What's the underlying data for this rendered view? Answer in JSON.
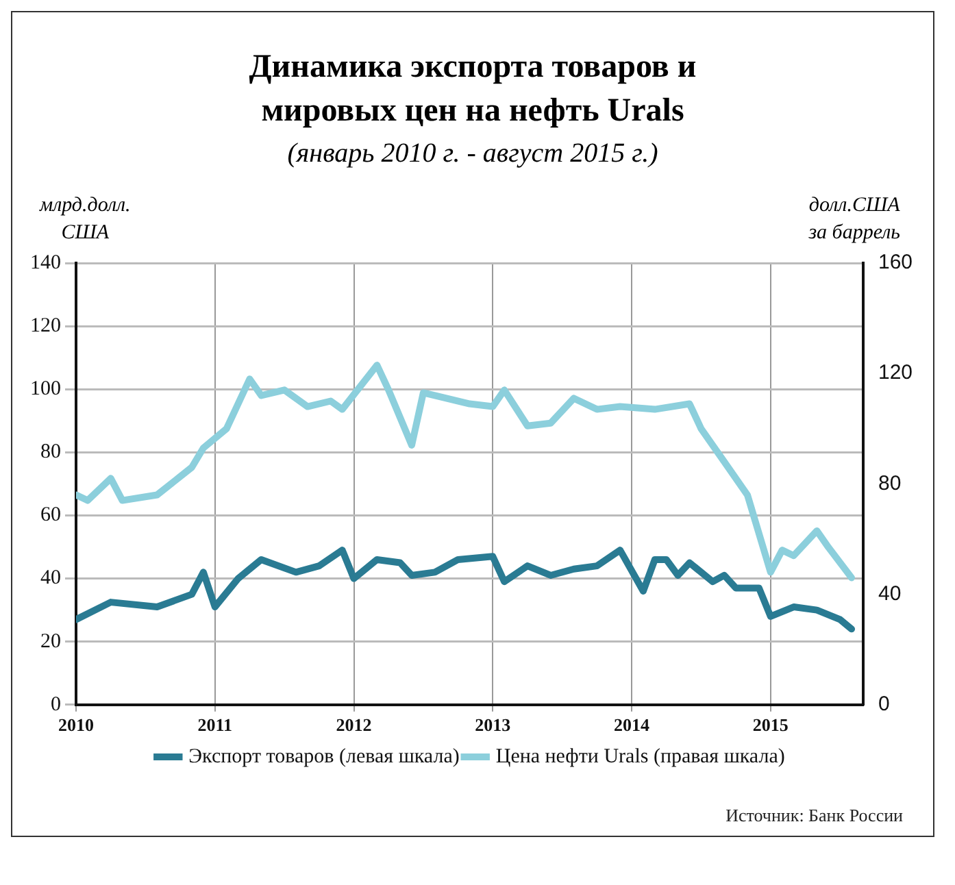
{
  "chart_data": {
    "type": "line",
    "title": "Динамика экспорта товаров и\nмировых цен на нефть Urals",
    "subtitle": "(январь 2010 г. - август 2015 г.)",
    "ylabel": "млрд.долл.\nСША",
    "y2label": "долл.США\nза баррель",
    "xlim": [
      "2010-01",
      "2015-09"
    ],
    "xticks": [
      "2010",
      "2011",
      "2012",
      "2013",
      "2014",
      "2015"
    ],
    "ylim": [
      0,
      140
    ],
    "yticks": [
      0,
      20,
      40,
      60,
      80,
      100,
      120,
      140
    ],
    "y2lim": [
      0,
      160
    ],
    "y2ticks": [
      0,
      40,
      80,
      120,
      160
    ],
    "grid": true,
    "legend": "bottom",
    "marker": "none",
    "line_style": "solid",
    "series": [
      {
        "name": "Экспорт товаров (левая шкала)",
        "color": "#2a7b93",
        "x": [
          "2010-01",
          "2010-04",
          "2010-08",
          "2010-11",
          "2010-12",
          "2011-01",
          "2011-03",
          "2011-05",
          "2011-08",
          "2011-10",
          "2011-12",
          "2012-01",
          "2012-03",
          "2012-05",
          "2012-06",
          "2012-08",
          "2012-10",
          "2013-01",
          "2013-02",
          "2013-04",
          "2013-06",
          "2013-08",
          "2013-10",
          "2013-12",
          "2014-02",
          "2014-03",
          "2014-04",
          "2014-05",
          "2014-06",
          "2014-08",
          "2014-09",
          "2014-10",
          "2014-12",
          "2015-01",
          "2015-03",
          "2015-05",
          "2015-07",
          "2015-08"
        ],
        "values": [
          27,
          32.5,
          31,
          35,
          42,
          31,
          40,
          46,
          42,
          44,
          49,
          40,
          46,
          45,
          41,
          42,
          46,
          47,
          39,
          44,
          41,
          43,
          44,
          49,
          36,
          46,
          46,
          41,
          45,
          39,
          41,
          37,
          37,
          28,
          31,
          30,
          27,
          24
        ]
      },
      {
        "name": "Цена нефти Urals (правая шкала)",
        "color": "#8ccfdc",
        "axis": "y2",
        "x": [
          "2010-01",
          "2010-02",
          "2010-04",
          "2010-05",
          "2010-08",
          "2010-11",
          "2010-12",
          "2011-02",
          "2011-04",
          "2011-05",
          "2011-07",
          "2011-09",
          "2011-11",
          "2011-12",
          "2012-03",
          "2012-04",
          "2012-06",
          "2012-07",
          "2012-08",
          "2012-11",
          "2013-01",
          "2013-02",
          "2013-04",
          "2013-06",
          "2013-08",
          "2013-10",
          "2013-12",
          "2014-03",
          "2014-06",
          "2014-07",
          "2014-09",
          "2014-11",
          "2015-01",
          "2015-02",
          "2015-03",
          "2015-05",
          "2015-06",
          "2015-08"
        ],
        "values": [
          76,
          74,
          82,
          74,
          76,
          86,
          93,
          100,
          118,
          112,
          114,
          108,
          110,
          107,
          123,
          114,
          94,
          113,
          112,
          109,
          108,
          114,
          101,
          102,
          111,
          107,
          108,
          107,
          109,
          100,
          88,
          76,
          48,
          56,
          54,
          63,
          57,
          46
        ]
      }
    ],
    "annotations": [
      "Источник: Банк России"
    ]
  }
}
